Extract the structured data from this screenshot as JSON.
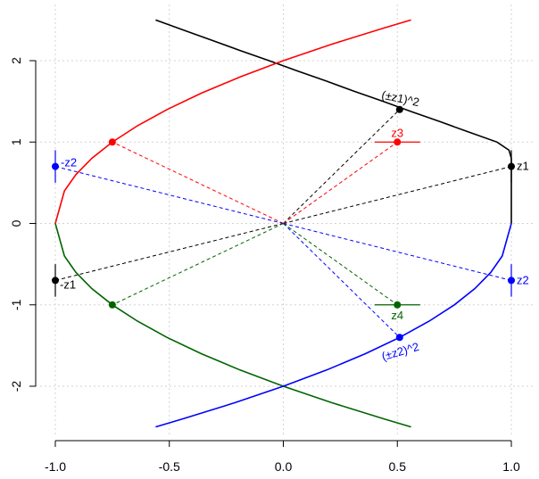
{
  "chart_data": {
    "type": "line",
    "title": "",
    "xlabel": "",
    "ylabel": "",
    "xlim": [
      -1.0,
      1.0
    ],
    "ylim": [
      -2.6,
      2.6
    ],
    "grid": true,
    "x_ticks": [
      {
        "value": -1.0,
        "label": "-1.0"
      },
      {
        "value": -0.5,
        "label": "-0.5"
      },
      {
        "value": 0.0,
        "label": "0.0"
      },
      {
        "value": 0.5,
        "label": "0.5"
      },
      {
        "value": 1.0,
        "label": "1.0"
      }
    ],
    "y_ticks": [
      {
        "value": -2,
        "label": "-2"
      },
      {
        "value": -1,
        "label": "-1"
      },
      {
        "value": 0,
        "label": "0"
      },
      {
        "value": 1,
        "label": "1"
      },
      {
        "value": 2,
        "label": "2"
      }
    ],
    "curves": [
      {
        "color": "#000000",
        "points": [
          [
            -0.56,
            2.5
          ],
          [
            -0.4375,
            2.375
          ],
          [
            -0.3125,
            2.25
          ],
          [
            -0.19,
            2.125
          ],
          [
            -0.0625,
            2.0
          ],
          [
            0.06,
            1.875
          ],
          [
            0.1875,
            1.75
          ],
          [
            0.31,
            1.625
          ],
          [
            0.4375,
            1.5
          ],
          [
            0.56,
            1.375
          ],
          [
            0.6875,
            1.25
          ],
          [
            0.81,
            1.125
          ],
          [
            0.9375,
            1.0
          ],
          [
            0.99,
            0.9
          ],
          [
            1.0,
            0.8
          ],
          [
            1.0,
            0.7
          ]
        ]
      },
      {
        "color": "#ff0000",
        "points": [
          [
            -1.0,
            0.0
          ],
          [
            -0.96,
            0.4
          ],
          [
            -0.91,
            0.6
          ],
          [
            -0.84,
            0.8
          ],
          [
            -0.75,
            1.0
          ],
          [
            -0.64,
            1.2
          ],
          [
            -0.51,
            1.4
          ],
          [
            -0.36,
            1.6
          ],
          [
            -0.19,
            1.8
          ],
          [
            0.0,
            2.0
          ],
          [
            0.21,
            2.2
          ],
          [
            0.44,
            2.4
          ],
          [
            0.56,
            2.5
          ]
        ]
      },
      {
        "color": "#006400",
        "points": [
          [
            -1.0,
            0.0
          ],
          [
            -0.96,
            -0.4
          ],
          [
            -0.91,
            -0.6
          ],
          [
            -0.84,
            -0.8
          ],
          [
            -0.75,
            -1.0
          ],
          [
            -0.64,
            -1.2
          ],
          [
            -0.51,
            -1.4
          ],
          [
            -0.36,
            -1.6
          ],
          [
            -0.19,
            -1.8
          ],
          [
            0.0,
            -2.0
          ],
          [
            0.21,
            -2.2
          ],
          [
            0.44,
            -2.4
          ],
          [
            0.56,
            -2.5
          ]
        ]
      },
      {
        "color": "#0000ff",
        "points": [
          [
            1.0,
            0.0
          ],
          [
            0.96,
            -0.4
          ],
          [
            0.91,
            -0.6
          ],
          [
            0.84,
            -0.8
          ],
          [
            0.75,
            -1.0
          ],
          [
            0.64,
            -1.2
          ],
          [
            0.51,
            -1.4
          ],
          [
            0.36,
            -1.6
          ],
          [
            0.19,
            -1.8
          ],
          [
            0.0,
            -2.0
          ],
          [
            -0.21,
            -2.2
          ],
          [
            -0.44,
            -2.4
          ],
          [
            -0.56,
            -2.5
          ]
        ]
      }
    ],
    "curve_black_upper_rest": [
      [
        1.0,
        0.7
      ],
      [
        1.0,
        0.0
      ]
    ],
    "dashed_lines": [
      {
        "color": "#000000",
        "from": [
          0.0,
          0.0
        ],
        "to": [
          1.0,
          0.7
        ]
      },
      {
        "color": "#000000",
        "from": [
          0.0,
          0.0
        ],
        "to": [
          -1.0,
          -0.7
        ]
      },
      {
        "color": "#000000",
        "from": [
          0.0,
          0.0
        ],
        "to": [
          0.51,
          1.4
        ]
      },
      {
        "color": "#ff0000",
        "from": [
          0.0,
          0.0
        ],
        "to": [
          -0.75,
          1.0
        ]
      },
      {
        "color": "#ff0000",
        "from": [
          0.0,
          0.0
        ],
        "to": [
          0.5,
          1.0
        ]
      },
      {
        "color": "#0000ff",
        "from": [
          0.0,
          0.0
        ],
        "to": [
          -1.0,
          0.7
        ]
      },
      {
        "color": "#0000ff",
        "from": [
          0.0,
          0.0
        ],
        "to": [
          1.0,
          -0.7
        ]
      },
      {
        "color": "#0000ff",
        "from": [
          0.0,
          0.0
        ],
        "to": [
          0.51,
          -1.4
        ]
      },
      {
        "color": "#006400",
        "from": [
          0.0,
          0.0
        ],
        "to": [
          -0.75,
          -1.0
        ]
      },
      {
        "color": "#006400",
        "from": [
          0.0,
          0.0
        ],
        "to": [
          0.5,
          -1.0
        ]
      }
    ],
    "error_bars": [
      {
        "color": "#000000",
        "x": 1.0,
        "y": 0.7,
        "orient": "v",
        "half": 0.2
      },
      {
        "color": "#000000",
        "x": -1.0,
        "y": -0.7,
        "orient": "v",
        "half": 0.2
      },
      {
        "color": "#0000ff",
        "x": -1.0,
        "y": 0.7,
        "orient": "v",
        "half": 0.2
      },
      {
        "color": "#0000ff",
        "x": 1.0,
        "y": -0.7,
        "orient": "v",
        "half": 0.2
      },
      {
        "color": "#ff0000",
        "x": 0.5,
        "y": 1.0,
        "orient": "h",
        "half": 0.1
      },
      {
        "color": "#006400",
        "x": 0.5,
        "y": -1.0,
        "orient": "h",
        "half": 0.1
      }
    ],
    "points": [
      {
        "color": "#000000",
        "x": 1.0,
        "y": 0.7
      },
      {
        "color": "#000000",
        "x": -1.0,
        "y": -0.7
      },
      {
        "color": "#000000",
        "x": 0.51,
        "y": 1.4
      },
      {
        "color": "#0000ff",
        "x": -1.0,
        "y": 0.7
      },
      {
        "color": "#0000ff",
        "x": 1.0,
        "y": -0.7
      },
      {
        "color": "#0000ff",
        "x": 0.51,
        "y": -1.4
      },
      {
        "color": "#ff0000",
        "x": -0.75,
        "y": 1.0
      },
      {
        "color": "#ff0000",
        "x": 0.5,
        "y": 1.0
      },
      {
        "color": "#006400",
        "x": -0.75,
        "y": -1.0
      },
      {
        "color": "#006400",
        "x": 0.5,
        "y": -1.0
      }
    ],
    "point_labels": [
      {
        "text": "z1",
        "color": "#000000",
        "x": 1.0,
        "y": 0.7,
        "anchor": "start",
        "dx": 6,
        "dy": 4,
        "rotate": 0
      },
      {
        "text": "-z1",
        "color": "#000000",
        "x": -1.0,
        "y": -0.7,
        "anchor": "start",
        "dx": 5,
        "dy": 9,
        "rotate": 0
      },
      {
        "text": "-z2",
        "color": "#0000ff",
        "x": -1.0,
        "y": 0.7,
        "anchor": "start",
        "dx": 6,
        "dy": 0,
        "rotate": 0
      },
      {
        "text": "z2",
        "color": "#0000ff",
        "x": 1.0,
        "y": -0.7,
        "anchor": "start",
        "dx": 6,
        "dy": 4,
        "rotate": 0
      },
      {
        "text": "z3",
        "color": "#ff0000",
        "x": 0.5,
        "y": 1.0,
        "anchor": "middle",
        "dx": 0,
        "dy": -6,
        "rotate": 0
      },
      {
        "text": "z4",
        "color": "#006400",
        "x": 0.5,
        "y": -1.0,
        "anchor": "middle",
        "dx": 0,
        "dy": 16,
        "rotate": 0
      },
      {
        "text": "(±z1)^2",
        "color": "#000000",
        "x": 0.51,
        "y": 1.4,
        "anchor": "middle",
        "dx": 0,
        "dy": -8,
        "rotate": 12
      },
      {
        "text": "(±z2)^2",
        "color": "#0000ff",
        "x": 0.51,
        "y": -1.4,
        "anchor": "middle",
        "dx": 2,
        "dy": 20,
        "rotate": -16
      }
    ]
  }
}
